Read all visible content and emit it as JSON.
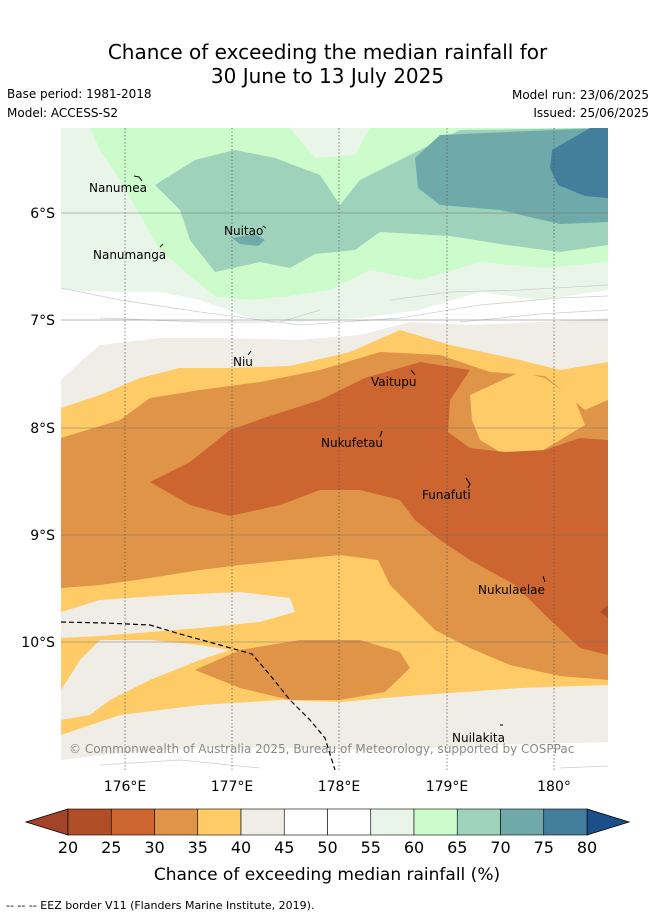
{
  "header": {
    "title_line1": "Chance of exceeding the median rainfall for",
    "title_line2": "30 June to 13 July 2025",
    "base_period": "Base period: 1981-2018",
    "model": "Model: ACCESS-S2",
    "model_run": "Model run: 23/06/2025",
    "issued": "Issued: 25/06/2025"
  },
  "map": {
    "lat_labels": [
      "6°S",
      "7°S",
      "8°S",
      "9°S",
      "10°S"
    ],
    "lon_labels": [
      "176°E",
      "177°E",
      "178°E",
      "179°E",
      "180°"
    ],
    "islands": [
      "Nanumea",
      "Nuitao",
      "Nanumanga",
      "Niu",
      "Vaitupu",
      "Nukufetau",
      "Funafuti",
      "Nukulaelae",
      "Nuilakita"
    ],
    "copyright": "© Commonwealth of Australia 2025, Bureau of Meteorology, supported by COSPPac",
    "eez_label": "-- -- -- EEZ border V11 (Flanders Marine Institute, 2019)."
  },
  "colorbar": {
    "ticks": [
      "20",
      "25",
      "30",
      "35",
      "40",
      "45",
      "50",
      "55",
      "60",
      "65",
      "70",
      "75",
      "80"
    ],
    "label": "Chance of exceeding median rainfall (%)",
    "colors": [
      "#b04f27",
      "#cc6530",
      "#e09448",
      "#fecb66",
      "#f0ece6",
      "#ffffff",
      "#ffffff",
      "#eaf5ea",
      "#ccfccc",
      "#9ed2bb",
      "#6fa9a9",
      "#437f9d"
    ],
    "under_color": "#a2432a",
    "over_color": "#1b4f8a"
  }
}
